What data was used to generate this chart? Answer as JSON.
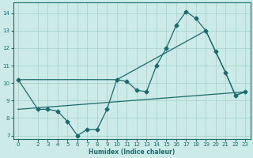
{
  "xlabel": "Humidex (Indice chaleur)",
  "bg_color": "#cceae7",
  "grid_color": "#aad4d0",
  "line_color": "#1a6b6b",
  "xlim": [
    -0.5,
    23.5
  ],
  "ylim": [
    6.8,
    14.6
  ],
  "yticks": [
    7,
    8,
    9,
    10,
    11,
    12,
    13,
    14
  ],
  "xticks": [
    0,
    2,
    3,
    4,
    5,
    6,
    7,
    8,
    9,
    10,
    11,
    12,
    13,
    14,
    15,
    16,
    17,
    18,
    19,
    20,
    21,
    22,
    23
  ],
  "line1_x": [
    0,
    2,
    3,
    4,
    5,
    6,
    7,
    8,
    9,
    10,
    11,
    12,
    13,
    14,
    15,
    16,
    17,
    18,
    19,
    20,
    21,
    22,
    23
  ],
  "line1_y": [
    10.2,
    8.5,
    8.5,
    8.4,
    7.8,
    7.0,
    7.35,
    7.35,
    8.5,
    10.2,
    10.1,
    9.6,
    9.5,
    11.0,
    12.0,
    13.3,
    14.1,
    13.7,
    13.0,
    11.8,
    10.6,
    9.3,
    9.5
  ],
  "line2_x": [
    0,
    10,
    19,
    20,
    21,
    22,
    23
  ],
  "line2_y": [
    10.2,
    10.2,
    13.0,
    11.8,
    10.6,
    9.3,
    9.5
  ],
  "line3_x": [
    0,
    23
  ],
  "line3_y": [
    8.5,
    9.5
  ]
}
